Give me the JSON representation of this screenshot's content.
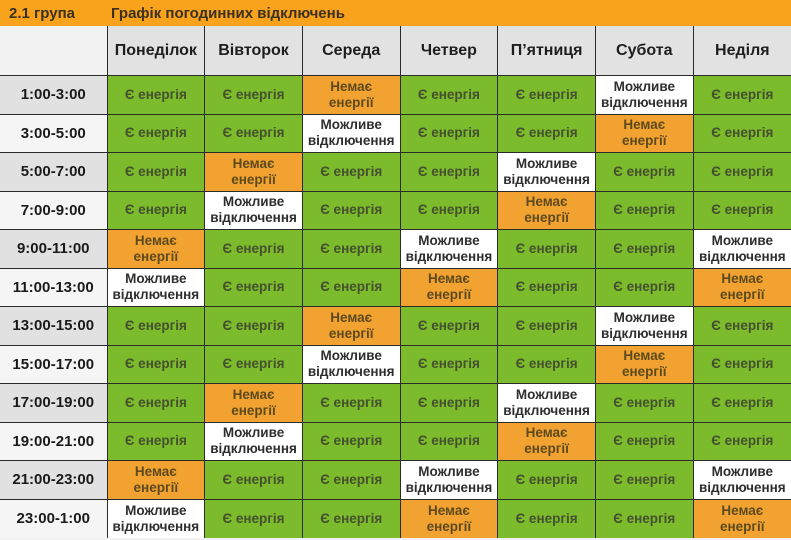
{
  "header": {
    "group": "2.1 група",
    "title": "Графік погодинних відключень"
  },
  "days": [
    "Понеділок",
    "Вівторок",
    "Середа",
    "Четвер",
    "П’ятниця",
    "Субота",
    "Неділя"
  ],
  "statuses": {
    "on": {
      "label": "Є енергія",
      "lines": [
        "Є енергія"
      ],
      "bg": "#7CBB2B",
      "text": "#44502F"
    },
    "off": {
      "label": "Немає енергії",
      "lines": [
        "Немає",
        "енергії"
      ],
      "bg": "#F2A230",
      "text": "#5C4A1E"
    },
    "maybe": {
      "label": "Можливе відключення",
      "lines": [
        "Можливе",
        "відключення"
      ],
      "bg": "#FFFFFF",
      "text": "#2E2E2E"
    }
  },
  "rows": [
    {
      "time": "1:00-3:00",
      "cells": [
        "on",
        "on",
        "off",
        "on",
        "on",
        "maybe",
        "on"
      ]
    },
    {
      "time": "3:00-5:00",
      "cells": [
        "on",
        "on",
        "maybe",
        "on",
        "on",
        "off",
        "on"
      ]
    },
    {
      "time": "5:00-7:00",
      "cells": [
        "on",
        "off",
        "on",
        "on",
        "maybe",
        "on",
        "on"
      ]
    },
    {
      "time": "7:00-9:00",
      "cells": [
        "on",
        "maybe",
        "on",
        "on",
        "off",
        "on",
        "on"
      ]
    },
    {
      "time": "9:00-11:00",
      "cells": [
        "off",
        "on",
        "on",
        "maybe",
        "on",
        "on",
        "maybe"
      ]
    },
    {
      "time": "11:00-13:00",
      "cells": [
        "maybe",
        "on",
        "on",
        "off",
        "on",
        "on",
        "off"
      ]
    },
    {
      "time": "13:00-15:00",
      "cells": [
        "on",
        "on",
        "off",
        "on",
        "on",
        "maybe",
        "on"
      ]
    },
    {
      "time": "15:00-17:00",
      "cells": [
        "on",
        "on",
        "maybe",
        "on",
        "on",
        "off",
        "on"
      ]
    },
    {
      "time": "17:00-19:00",
      "cells": [
        "on",
        "off",
        "on",
        "on",
        "maybe",
        "on",
        "on"
      ]
    },
    {
      "time": "19:00-21:00",
      "cells": [
        "on",
        "maybe",
        "on",
        "on",
        "off",
        "on",
        "on"
      ]
    },
    {
      "time": "21:00-23:00",
      "cells": [
        "off",
        "on",
        "on",
        "maybe",
        "on",
        "on",
        "maybe"
      ]
    },
    {
      "time": "23:00-1:00",
      "cells": [
        "maybe",
        "on",
        "on",
        "off",
        "on",
        "on",
        "off"
      ]
    }
  ],
  "colors": {
    "title_bar_bg": "#F9A21B",
    "title_text": "#3A3122",
    "day_header_bg": "#E2E2E2",
    "corner_bg": "#F2F2F2",
    "time_col_bg_odd": "#E1E1E1",
    "time_col_bg_even": "#F5F5F5",
    "grid_line": "#2B2B2B",
    "header_text": "#1E1E1E"
  },
  "chart_data": {
    "type": "table",
    "title": "Графік погодинних відключень",
    "subtitle": "2.1 група",
    "columns": [
      "Понеділок",
      "Вівторок",
      "Середа",
      "Четвер",
      "П’ятниця",
      "Субота",
      "Неділя"
    ],
    "row_labels": [
      "1:00-3:00",
      "3:00-5:00",
      "5:00-7:00",
      "7:00-9:00",
      "9:00-11:00",
      "11:00-13:00",
      "13:00-15:00",
      "15:00-17:00",
      "17:00-19:00",
      "19:00-21:00",
      "21:00-23:00",
      "23:00-1:00"
    ],
    "legend": {
      "on": "Є енергія (зелений)",
      "off": "Немає енергії (помаранчевий)",
      "maybe": "Можливе відключення (білий)"
    },
    "values": [
      [
        "on",
        "on",
        "off",
        "on",
        "on",
        "maybe",
        "on"
      ],
      [
        "on",
        "on",
        "maybe",
        "on",
        "on",
        "off",
        "on"
      ],
      [
        "on",
        "off",
        "on",
        "on",
        "maybe",
        "on",
        "on"
      ],
      [
        "on",
        "maybe",
        "on",
        "on",
        "off",
        "on",
        "on"
      ],
      [
        "off",
        "on",
        "on",
        "maybe",
        "on",
        "on",
        "maybe"
      ],
      [
        "maybe",
        "on",
        "on",
        "off",
        "on",
        "on",
        "off"
      ],
      [
        "on",
        "on",
        "off",
        "on",
        "on",
        "maybe",
        "on"
      ],
      [
        "on",
        "on",
        "maybe",
        "on",
        "on",
        "off",
        "on"
      ],
      [
        "on",
        "off",
        "on",
        "on",
        "maybe",
        "on",
        "on"
      ],
      [
        "on",
        "maybe",
        "on",
        "on",
        "off",
        "on",
        "on"
      ],
      [
        "off",
        "on",
        "on",
        "maybe",
        "on",
        "on",
        "maybe"
      ],
      [
        "maybe",
        "on",
        "on",
        "off",
        "on",
        "on",
        "off"
      ]
    ]
  }
}
